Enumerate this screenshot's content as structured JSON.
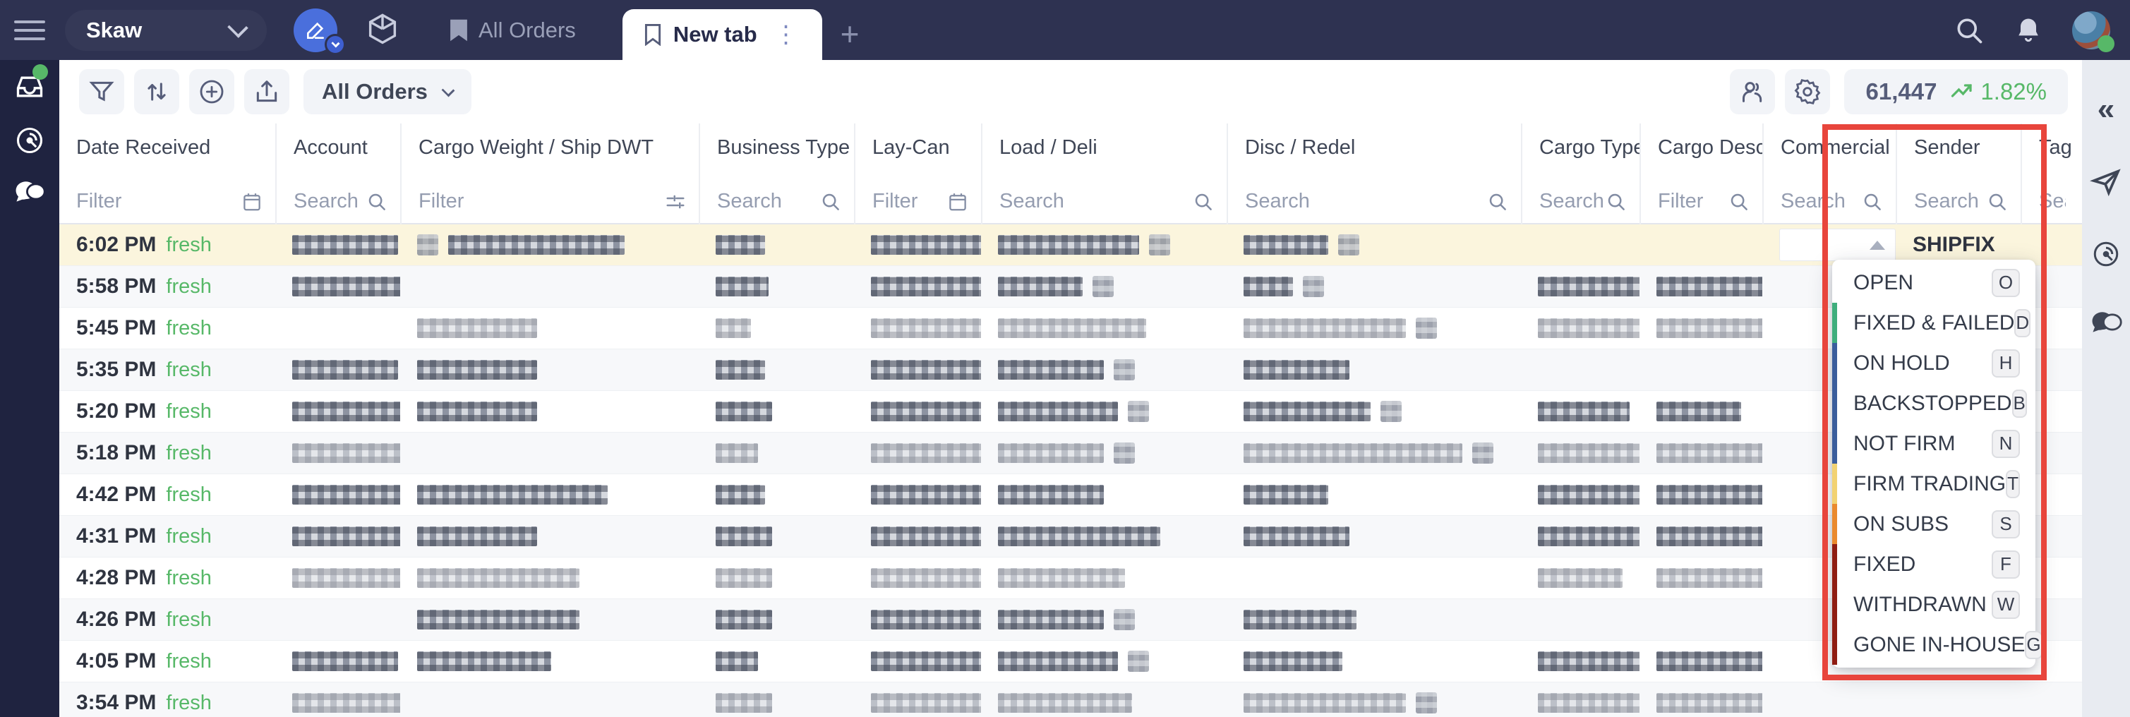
{
  "colors": {
    "topbar_bg": "#2e3251",
    "sidebar_bg": "#1f2340",
    "accent_blue": "#4a6fdc",
    "green": "#57b868",
    "row_highlight": "#fbf5dd",
    "annotation_red": "#e8453c"
  },
  "topbar": {
    "workspace": "Skaw",
    "pinned_tab": "All Orders",
    "active_tab": "New tab",
    "add_tab": "+"
  },
  "toolbar": {
    "view_selector": "All Orders",
    "count": "61,447",
    "trend": "1.82%"
  },
  "table": {
    "columns": [
      {
        "key": "date",
        "label": "Date Received",
        "placeholder": "Filter",
        "icon": "calendar"
      },
      {
        "key": "account",
        "label": "Account",
        "placeholder": "Search",
        "icon": "search"
      },
      {
        "key": "cargo_w",
        "label": "Cargo Weight / Ship DWT",
        "placeholder": "Filter",
        "icon": "sliders"
      },
      {
        "key": "biz",
        "label": "Business Type",
        "placeholder": "Search",
        "icon": "search"
      },
      {
        "key": "laycan",
        "label": "Lay-Can",
        "placeholder": "Filter",
        "icon": "calendar"
      },
      {
        "key": "load",
        "label": "Load / Deli",
        "placeholder": "Search",
        "icon": "search"
      },
      {
        "key": "disc",
        "label": "Disc / Redel",
        "placeholder": "Search",
        "icon": "search"
      },
      {
        "key": "ctypes",
        "label": "Cargo Types",
        "placeholder": "Search",
        "icon": "search"
      },
      {
        "key": "cdesc",
        "label": "Cargo Desc.",
        "placeholder": "Filter",
        "icon": "search"
      },
      {
        "key": "comm",
        "label": "Commercial S",
        "placeholder": "Search",
        "icon": "search"
      },
      {
        "key": "sender",
        "label": "Sender",
        "placeholder": "Search",
        "icon": "search"
      },
      {
        "key": "tags",
        "label": "Tag",
        "placeholder": "Sea",
        "icon": "none"
      }
    ],
    "rows": [
      {
        "time": "6:02 PM",
        "badge": "fresh",
        "cells": {
          "account": [
            "b150"
          ],
          "cargo_w": [
            "i",
            "b250"
          ],
          "biz": [
            "b70"
          ],
          "laycan": [
            "b190"
          ],
          "load": [
            "b200",
            "i"
          ],
          "disc": [
            "b120",
            "i"
          ],
          "ctypes": [],
          "cdesc": []
        }
      },
      {
        "time": "5:58 PM",
        "badge": "fresh",
        "cells": {
          "account": [
            "b170"
          ],
          "cargo_w": [],
          "biz": [
            "b75"
          ],
          "laycan": [
            "b260"
          ],
          "load": [
            "b120",
            "i"
          ],
          "disc": [
            "b70",
            "i"
          ],
          "ctypes": [
            "b290"
          ],
          "cdesc": [
            "b230"
          ]
        }
      },
      {
        "time": "5:45 PM",
        "badge": "fresh",
        "cells": {
          "account": [],
          "cargo_w": [
            "b170"
          ],
          "biz": [
            "b50"
          ],
          "laycan": [
            "b200"
          ],
          "load": [
            "b210"
          ],
          "disc": [
            "b230",
            "i"
          ],
          "ctypes": [
            "b330"
          ],
          "cdesc": [
            "b280"
          ]
        }
      },
      {
        "time": "5:35 PM",
        "badge": "fresh",
        "cells": {
          "account": [
            "b150"
          ],
          "cargo_w": [
            "b170"
          ],
          "biz": [
            "b70"
          ],
          "laycan": [
            "b180"
          ],
          "load": [
            "b150",
            "i"
          ],
          "disc": [
            "b150"
          ],
          "ctypes": [],
          "cdesc": []
        }
      },
      {
        "time": "5:20 PM",
        "badge": "fresh",
        "cells": {
          "account": [
            "b170"
          ],
          "cargo_w": [
            "b170"
          ],
          "biz": [
            "b80"
          ],
          "laycan": [
            "b160"
          ],
          "load": [
            "b170",
            "i"
          ],
          "disc": [
            "b180",
            "i"
          ],
          "ctypes": [
            "b130"
          ],
          "cdesc": [
            "b120"
          ]
        }
      },
      {
        "time": "5:18 PM",
        "badge": "fresh",
        "cells": {
          "account": [
            "b190"
          ],
          "cargo_w": [],
          "biz": [
            "b60"
          ],
          "laycan": [
            "b210"
          ],
          "load": [
            "b150",
            "i"
          ],
          "disc": [
            "b310",
            "i"
          ],
          "ctypes": [
            "b170"
          ],
          "cdesc": [
            "b290"
          ]
        }
      },
      {
        "time": "4:42 PM",
        "badge": "fresh",
        "cells": {
          "account": [
            "b210"
          ],
          "cargo_w": [
            "b270"
          ],
          "biz": [
            "b70"
          ],
          "laycan": [
            "b210"
          ],
          "load": [
            "b150"
          ],
          "disc": [
            "b120"
          ],
          "ctypes": [
            "b150"
          ],
          "cdesc": [
            "b170"
          ]
        }
      },
      {
        "time": "4:31 PM",
        "badge": "fresh",
        "cells": {
          "account": [
            "b200"
          ],
          "cargo_w": [
            "b170"
          ],
          "biz": [
            "b80"
          ],
          "laycan": [
            "b180"
          ],
          "load": [
            "b230"
          ],
          "disc": [
            "b150"
          ],
          "ctypes": [
            "b280"
          ],
          "cdesc": [
            "b270"
          ]
        }
      },
      {
        "time": "4:28 PM",
        "badge": "fresh",
        "cells": {
          "account": [
            "b220"
          ],
          "cargo_w": [
            "b230"
          ],
          "biz": [
            "b80"
          ],
          "laycan": [
            "b170"
          ],
          "load": [
            "b180"
          ],
          "disc": [],
          "ctypes": [
            "b120"
          ],
          "cdesc": [
            "b190"
          ]
        }
      },
      {
        "time": "4:26 PM",
        "badge": "fresh",
        "cells": {
          "account": [],
          "cargo_w": [
            "b230"
          ],
          "biz": [
            "b80"
          ],
          "laycan": [
            "b200"
          ],
          "load": [
            "b150",
            "i"
          ],
          "disc": [
            "b160"
          ],
          "ctypes": [],
          "cdesc": []
        }
      },
      {
        "time": "4:05 PM",
        "badge": "fresh",
        "cells": {
          "account": [
            "b150"
          ],
          "cargo_w": [
            "b190"
          ],
          "biz": [
            "b60"
          ],
          "laycan": [
            "b200"
          ],
          "load": [
            "b170",
            "i"
          ],
          "disc": [
            "b140"
          ],
          "ctypes": [
            "b380"
          ],
          "cdesc": [
            "b300"
          ]
        }
      },
      {
        "time": "3:54 PM",
        "badge": "fresh",
        "cells": {
          "account": [
            "b220"
          ],
          "cargo_w": [],
          "biz": [
            "b80"
          ],
          "laycan": [
            "b210"
          ],
          "load": [
            "b190"
          ],
          "disc": [
            "b230",
            "i"
          ],
          "ctypes": [
            "b270"
          ],
          "cdesc": [
            "b240"
          ]
        }
      }
    ]
  },
  "row1": {
    "sender": "SHIPFIX"
  },
  "status_dropdown": {
    "items": [
      {
        "label": "OPEN",
        "shortcut": "O",
        "color": ""
      },
      {
        "label": "FIXED & FAILED",
        "shortcut": "D",
        "color": "#3fae7c"
      },
      {
        "label": "ON HOLD",
        "shortcut": "H",
        "color": "#3a5d9c"
      },
      {
        "label": "BACKSTOPPED",
        "shortcut": "B",
        "color": "#3a5d9c"
      },
      {
        "label": "NOT FIRM",
        "shortcut": "N",
        "color": "#3a5d9c"
      },
      {
        "label": "FIRM TRADING",
        "shortcut": "T",
        "color": "#f2d272"
      },
      {
        "label": "ON SUBS",
        "shortcut": "S",
        "color": "#ea8a2e"
      },
      {
        "label": "FIXED",
        "shortcut": "F",
        "color": "#8f1d12"
      },
      {
        "label": "WITHDRAWN",
        "shortcut": "W",
        "color": "#8f1d12"
      },
      {
        "label": "GONE IN-HOUSE",
        "shortcut": "G",
        "color": "#8f1d12"
      }
    ]
  }
}
